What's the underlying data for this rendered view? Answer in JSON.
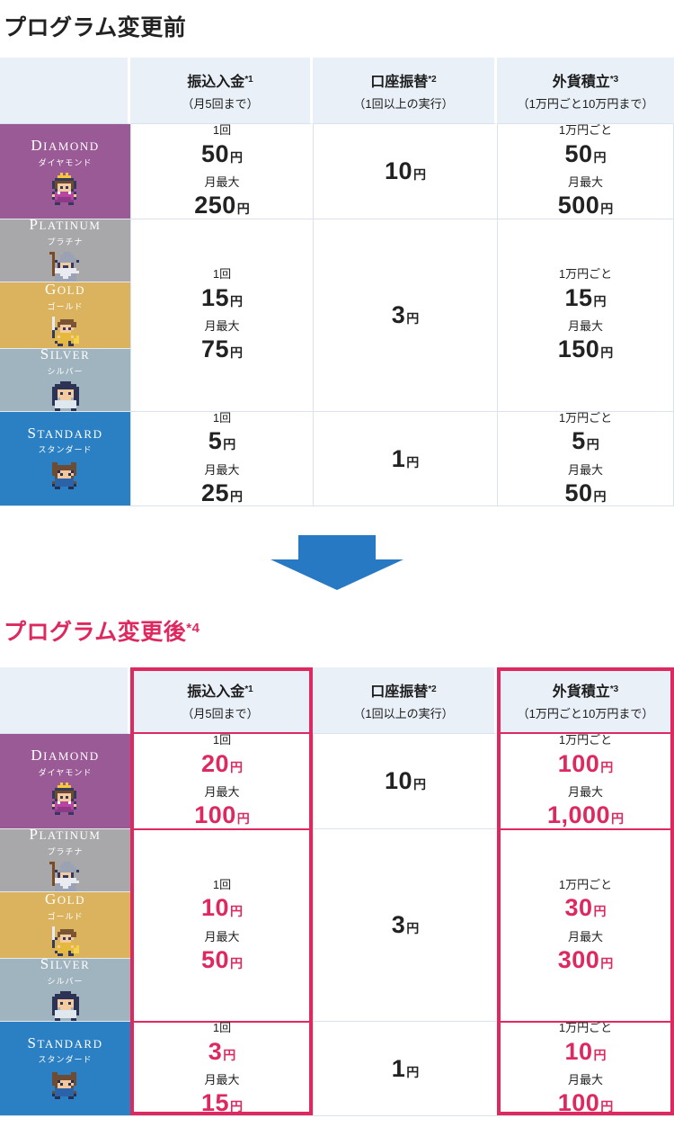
{
  "colors": {
    "highlight": "#dd2960",
    "arrow": "#2779c4",
    "header_bg": "#e9f0f8",
    "grid": "#d9e3ed"
  },
  "labels": {
    "per_time": "1回",
    "monthly_max": "月最大",
    "per_10k": "1万円ごと",
    "yen": "円"
  },
  "columns": [
    {
      "title": "振込入金",
      "sup": "*1",
      "note": "（月5回まで）"
    },
    {
      "title": "口座振替",
      "sup": "*2",
      "note": "（1回以上の実行）"
    },
    {
      "title": "外貨積立",
      "sup": "*3",
      "note": "（1万円ごと10万円まで）"
    }
  ],
  "tiers": [
    {
      "name": "DIAMOND",
      "kana": "ダイヤモンド",
      "color": "#9a5a96",
      "icon": "king-character-icon"
    },
    {
      "name": "PLATINUM",
      "kana": "プラチナ",
      "color": "#a8a8aa",
      "icon": "wizard-character-icon"
    },
    {
      "name": "GOLD",
      "kana": "ゴールド",
      "color": "#dbb35f",
      "icon": "warrior-character-icon"
    },
    {
      "name": "SILVER",
      "kana": "シルバー",
      "color": "#a0b4c0",
      "icon": "ninja-character-icon"
    },
    {
      "name": "STANDARD",
      "kana": "スタンダード",
      "color": "#2b80c4",
      "icon": "bear-character-icon"
    }
  ],
  "before": {
    "title": "プログラム変更前",
    "groups": [
      {
        "deposit": {
          "per": "50",
          "max": "250"
        },
        "debit": "10",
        "fx": {
          "per": "50",
          "max": "500"
        }
      },
      {
        "deposit": {
          "per": "15",
          "max": "75"
        },
        "debit": "3",
        "fx": {
          "per": "15",
          "max": "150"
        }
      },
      {
        "deposit": {
          "per": "5",
          "max": "25"
        },
        "debit": "1",
        "fx": {
          "per": "5",
          "max": "50"
        }
      }
    ]
  },
  "after": {
    "title": "プログラム変更後",
    "title_sup": "*4",
    "groups": [
      {
        "deposit": {
          "per": "20",
          "max": "100"
        },
        "debit": "10",
        "fx": {
          "per": "100",
          "max": "1,000"
        }
      },
      {
        "deposit": {
          "per": "10",
          "max": "50"
        },
        "debit": "3",
        "fx": {
          "per": "30",
          "max": "300"
        }
      },
      {
        "deposit": {
          "per": "3",
          "max": "15"
        },
        "debit": "1",
        "fx": {
          "per": "10",
          "max": "100"
        }
      }
    ]
  },
  "chart_data": [
    {
      "type": "table",
      "title": "プログラム変更前",
      "columns": [
        "",
        "振込入金*1（月5回まで）",
        "口座振替*2（1回以上の実行）",
        "外貨積立*3（1万円ごと10万円まで）"
      ],
      "rows": [
        [
          "DIAMOND ダイヤモンド",
          "1回50円・月最大250円",
          "10円",
          "1万円ごと50円・月最大500円"
        ],
        [
          "PLATINUM プラチナ／GOLD ゴールド／SILVER シルバー",
          "1回15円・月最大75円",
          "3円",
          "1万円ごと15円・月最大150円"
        ],
        [
          "STANDARD スタンダード",
          "1回5円・月最大25円",
          "1円",
          "1万円ごと5円・月最大50円"
        ]
      ]
    },
    {
      "type": "table",
      "title": "プログラム変更後*4",
      "columns": [
        "",
        "振込入金*1（月5回まで）",
        "口座振替*2（1回以上の実行）",
        "外貨積立*3（1万円ごと10万円まで）"
      ],
      "rows": [
        [
          "DIAMOND ダイヤモンド",
          "1回20円・月最大100円",
          "10円",
          "1万円ごと100円・月最大1,000円"
        ],
        [
          "PLATINUM プラチナ／GOLD ゴールド／SILVER シルバー",
          "1回10円・月最大50円",
          "3円",
          "1万円ごと30円・月最大300円"
        ],
        [
          "STANDARD スタンダード",
          "1回3円・月最大15円",
          "1円",
          "1万円ごと10円・月最大100円"
        ]
      ],
      "highlighted_columns": [
        "振込入金",
        "外貨積立"
      ]
    }
  ]
}
